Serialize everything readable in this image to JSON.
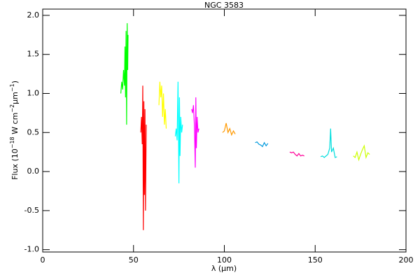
{
  "chart_data": {
    "type": "line",
    "title": "NGC 3583",
    "xlabel": "λ (μm)",
    "ylabel_parts": [
      "Flux (10",
      "−18",
      " W cm",
      "−2",
      "μm",
      "−1",
      ")"
    ],
    "xlim": [
      0,
      200
    ],
    "xticks": [
      0,
      50,
      100,
      150,
      200
    ],
    "ylim": [
      -1.03,
      2.08
    ],
    "yticks": [
      {
        "value": -1,
        "label": "-1.0"
      },
      -0.5,
      {
        "value": 0,
        "label": "0.0"
      },
      0.5,
      {
        "value": 1,
        "label": "1.0"
      },
      1.5,
      {
        "value": 2,
        "label": "2.0"
      }
    ],
    "series": [
      {
        "color": "#00ff00",
        "x": [
          43,
          43.5,
          44,
          44.5,
          45,
          45.3,
          45.6,
          45.9,
          46.2,
          46.5,
          46.8,
          47
        ],
        "values": [
          1.0,
          1.15,
          1.05,
          1.3,
          1.1,
          1.6,
          0.95,
          1.8,
          0.6,
          1.9,
          1.3,
          1.75
        ]
      },
      {
        "color": "#ff0000",
        "x": [
          54,
          54.4,
          54.8,
          55.1,
          55.4,
          55.7,
          56,
          56.3,
          56.6,
          57
        ],
        "values": [
          0.5,
          0.7,
          0.35,
          1.1,
          -0.75,
          0.9,
          -0.3,
          0.8,
          -0.5,
          0.6
        ]
      },
      {
        "color": "#ffff00",
        "x": [
          64,
          64.5,
          65,
          65.5,
          66,
          66.5,
          67,
          67.5,
          68
        ],
        "values": [
          0.85,
          1.15,
          0.95,
          1.1,
          0.7,
          1.0,
          0.6,
          0.8,
          0.55
        ]
      },
      {
        "color": "#00ffff",
        "x": [
          73,
          73.5,
          74,
          74.5,
          75,
          75.3,
          75.6,
          76,
          76.5,
          77
        ],
        "values": [
          0.45,
          0.55,
          0.4,
          1.15,
          -0.15,
          0.95,
          0.2,
          0.7,
          0.5,
          0.6
        ]
      },
      {
        "color": "#ff00ff",
        "x": [
          82,
          82.5,
          83,
          83.5,
          84,
          84.3,
          84.6,
          85,
          85.5,
          86
        ],
        "values": [
          0.8,
          0.75,
          0.85,
          0.6,
          0.05,
          0.95,
          0.3,
          0.7,
          0.5,
          0.55
        ]
      },
      {
        "color": "#ff9900",
        "x": [
          99,
          100,
          101,
          102,
          103,
          104,
          105,
          106
        ],
        "values": [
          0.5,
          0.52,
          0.62,
          0.5,
          0.55,
          0.47,
          0.52,
          0.48
        ]
      },
      {
        "color": "#0099dd",
        "x": [
          117,
          118,
          119,
          120,
          121,
          122,
          123,
          124
        ],
        "values": [
          0.37,
          0.38,
          0.35,
          0.34,
          0.32,
          0.37,
          0.33,
          0.36
        ]
      },
      {
        "color": "#ff0099",
        "x": [
          136,
          137,
          138,
          139,
          140,
          141,
          142,
          143,
          144
        ],
        "values": [
          0.25,
          0.24,
          0.25,
          0.22,
          0.2,
          0.23,
          0.2,
          0.21,
          0.2
        ]
      },
      {
        "color": "#00dddd",
        "x": [
          153,
          154,
          155,
          156,
          157,
          158,
          158.5,
          159,
          160,
          161,
          162
        ],
        "values": [
          0.19,
          0.2,
          0.18,
          0.2,
          0.22,
          0.3,
          0.55,
          0.25,
          0.3,
          0.18,
          0.19
        ]
      },
      {
        "color": "#ccff00",
        "x": [
          171,
          172,
          173,
          174,
          175,
          176,
          177,
          178,
          179,
          180
        ],
        "values": [
          0.2,
          0.18,
          0.25,
          0.15,
          0.22,
          0.28,
          0.33,
          0.18,
          0.24,
          0.22
        ]
      }
    ]
  }
}
